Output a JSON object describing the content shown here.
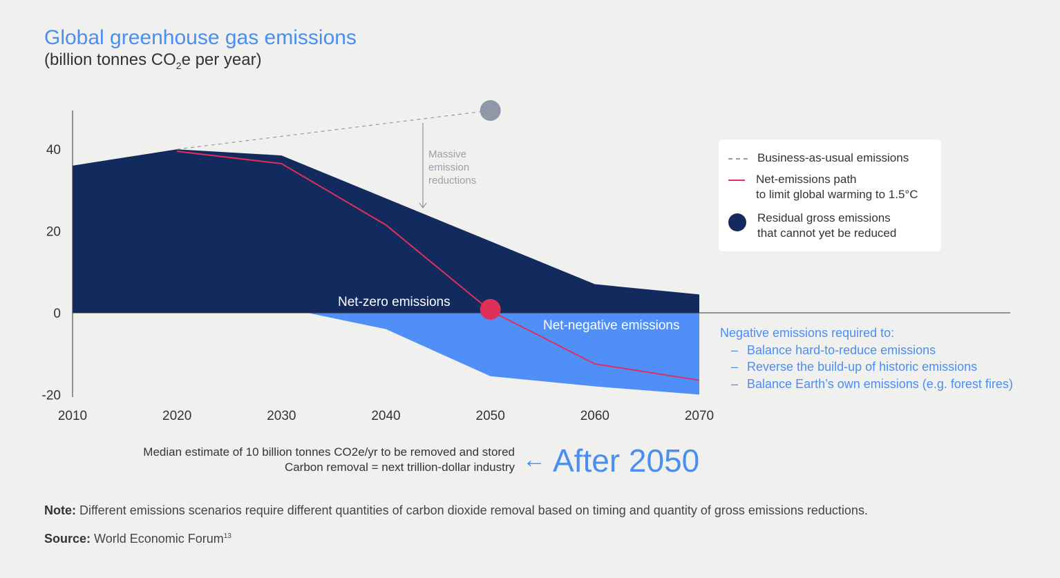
{
  "title": "Global greenhouse gas emissions",
  "subtitle_pre": "(billion tonnes CO",
  "subtitle_sub": "2",
  "subtitle_post": "e per year)",
  "legend": {
    "bau": "Business-as-usual emissions",
    "net_path": "Net-emissions path\nto limit global warming to 1.5°C",
    "residual": "Residual gross emissions\nthat cannot yet be reduced"
  },
  "annotations": {
    "massive": [
      "Massive",
      "emission",
      "reductions"
    ],
    "net_zero": "Net-zero emissions",
    "net_negative": "Net-negative emissions"
  },
  "negative_note": {
    "heading": "Negative emissions required to:",
    "items": [
      "Balance hard-to-reduce emissions",
      "Reverse the build-up of historic emissions",
      "Balance Earth’s own emissions (e.g. forest fires)"
    ]
  },
  "bottom": {
    "line1": "Median estimate of 10 billion tonnes CO2e/yr to be removed and stored",
    "line2": "Carbon removal = next trillion-dollar industry",
    "arrow": "←",
    "after": "After 2050"
  },
  "note_label": "Note:",
  "note_text": " Different emissions scenarios require different quantities of carbon dioxide removal based on timing and quantity of gross emissions reductions.",
  "source_label": "Source:",
  "source_text": " World Economic Forum",
  "source_sup": "13",
  "colors": {
    "gross": "#132a5e",
    "negative": "#4f8ff7",
    "net_line": "#e0305a",
    "bau_dot": "#8f98a8",
    "accent": "#4a8ef0"
  },
  "chart_data": {
    "type": "area",
    "title": "Global greenhouse gas emissions",
    "ylabel": "billion tonnes CO2e per year",
    "x": [
      2010,
      2020,
      2030,
      2040,
      2050,
      2060,
      2070
    ],
    "xlim": [
      2010,
      2070
    ],
    "ylim": [
      -20,
      50
    ],
    "yticks": [
      40,
      20,
      0,
      -20
    ],
    "series": [
      {
        "name": "Gross emissions",
        "x": [
          2010,
          2020,
          2030,
          2040,
          2050,
          2060,
          2070
        ],
        "values": [
          36,
          40,
          38.5,
          28,
          17.5,
          7,
          4.5
        ]
      },
      {
        "name": "Negative emissions (removals)",
        "x": [
          2010,
          2020,
          2030,
          2032.5,
          2040,
          2050,
          2060,
          2070
        ],
        "values": [
          0,
          0,
          0,
          0,
          -4,
          -15.5,
          -18,
          -20
        ]
      },
      {
        "name": "Net-emissions path to limit global warming to 1.5°C",
        "x": [
          2020,
          2030,
          2040,
          2050,
          2060,
          2070
        ],
        "values": [
          39.5,
          36.5,
          21.5,
          0.5,
          -12.5,
          -16.5
        ]
      },
      {
        "name": "Business-as-usual emissions",
        "x": [
          2020,
          2050
        ],
        "values": [
          40,
          49.5
        ]
      }
    ],
    "markers": [
      {
        "name": "BAU 2050",
        "x": 2050,
        "y": 49.5
      },
      {
        "name": "Net-zero",
        "x": 2050,
        "y": 0.5
      }
    ]
  }
}
